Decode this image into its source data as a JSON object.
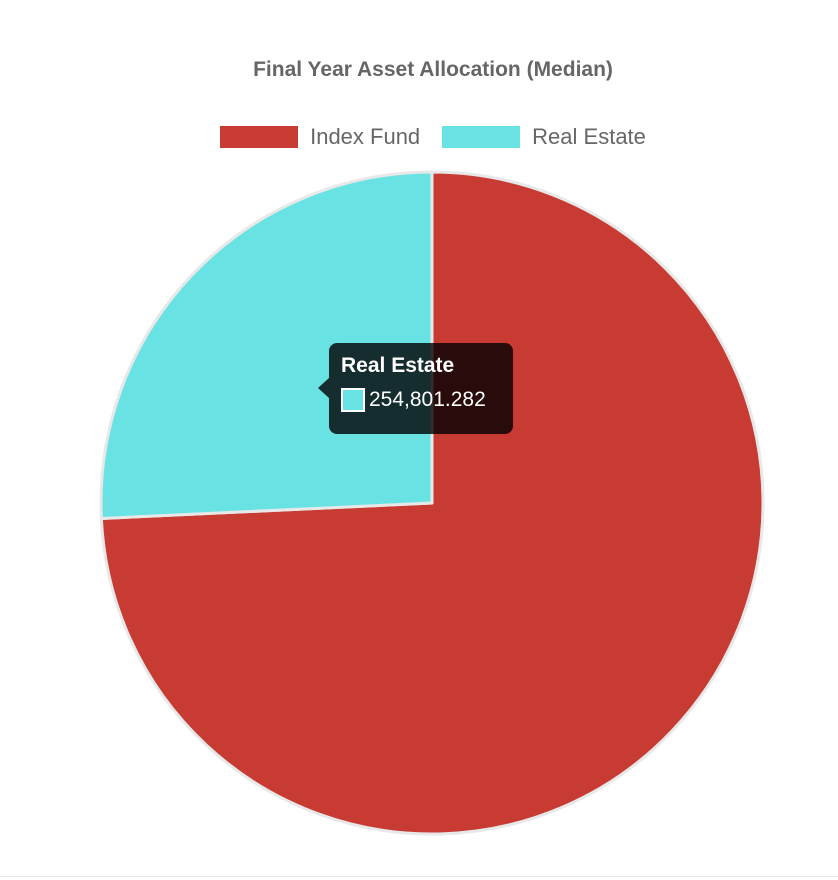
{
  "chart_data": {
    "type": "pie",
    "title": "Final Year Asset Allocation (Median)",
    "categories": [
      "Index Fund",
      "Real Estate"
    ],
    "values": [
      735000,
      254801.282
    ],
    "colors": [
      "#c73b33",
      "#68e2e3"
    ],
    "border_color": "#e8e8e8",
    "legend_position": "top",
    "tooltip": {
      "title": "Real Estate",
      "value_text": "254,801.282",
      "swatch_color": "#68e2e3"
    }
  }
}
